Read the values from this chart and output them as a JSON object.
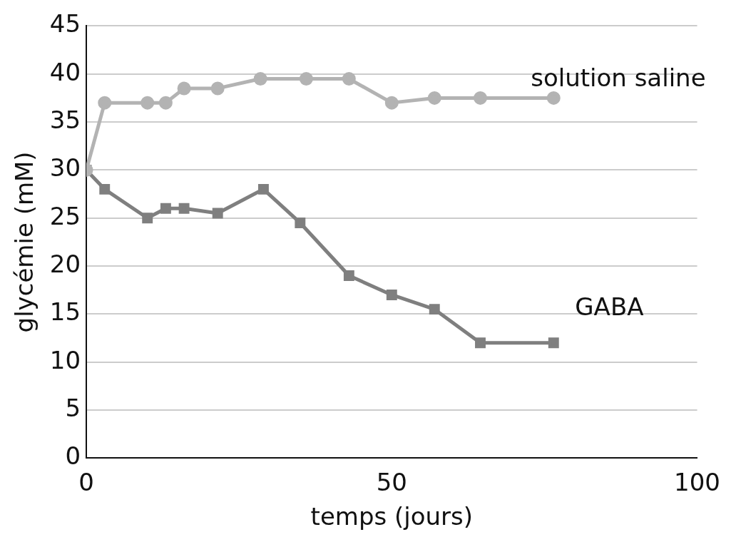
{
  "chart_data": {
    "type": "line",
    "xlabel": "temps (jours)",
    "ylabel": "glycémie (mM)",
    "xlim": [
      0,
      100
    ],
    "xticks": [
      0,
      50,
      100
    ],
    "ylim": [
      0,
      45
    ],
    "yticks": [
      0,
      5,
      10,
      15,
      20,
      25,
      30,
      35,
      40,
      45
    ],
    "grid": "y",
    "legend": false,
    "series": [
      {
        "name": "solution saline",
        "color": "#b3b3b3",
        "marker": "circle",
        "x": [
          0,
          3,
          10,
          13,
          16,
          21.5,
          28.5,
          36,
          43,
          50,
          57,
          64.5,
          76.5
        ],
        "values": [
          30,
          37,
          37,
          37,
          38.5,
          38.5,
          39.5,
          39.5,
          39.5,
          37,
          37.5,
          37.5,
          37.5
        ]
      },
      {
        "name": "GABA",
        "color": "#7f7f7f",
        "marker": "square",
        "x": [
          0,
          3,
          10,
          13,
          16,
          21.5,
          29,
          35,
          43,
          50,
          57,
          64.5,
          76.5
        ],
        "values": [
          30,
          28,
          25,
          26,
          26,
          25.5,
          28,
          24.5,
          19,
          17,
          15.5,
          12,
          12
        ]
      }
    ]
  }
}
